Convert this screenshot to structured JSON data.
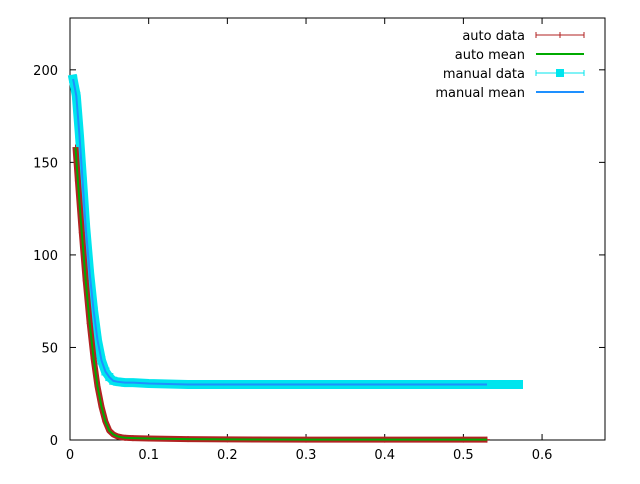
{
  "chart_data": {
    "type": "line",
    "title": "",
    "xlabel": "",
    "ylabel": "",
    "xlim": [
      0,
      0.68
    ],
    "ylim": [
      0,
      228
    ],
    "xticks": [
      0,
      0.1,
      0.2,
      0.3,
      0.4,
      0.5,
      0.6
    ],
    "xtick_labels": [
      "0",
      "0.1",
      "0.2",
      "0.3",
      "0.4",
      "0.5",
      "0.6"
    ],
    "yticks": [
      0,
      50,
      100,
      150,
      200
    ],
    "ytick_labels": [
      "0",
      "50",
      "100",
      "150",
      "200"
    ],
    "legend_position": "top-right",
    "grid": false,
    "series": [
      {
        "name": "auto data",
        "style": "errorbars",
        "color": "#b22222",
        "x": [
          0.007,
          0.01,
          0.015,
          0.02,
          0.025,
          0.03,
          0.035,
          0.04,
          0.045,
          0.05,
          0.055,
          0.06,
          0.065,
          0.07,
          0.08,
          0.1,
          0.15,
          0.2,
          0.3,
          0.4,
          0.5,
          0.53
        ],
        "y": [
          158,
          140,
          112,
          86,
          63,
          44,
          29,
          18,
          10,
          5,
          3,
          2,
          1.5,
          1.2,
          1.0,
          0.8,
          0.5,
          0.3,
          0.2,
          0.2,
          0.2,
          0.2
        ]
      },
      {
        "name": "auto mean",
        "style": "line",
        "color": "#00aa00",
        "x": [
          0.007,
          0.01,
          0.015,
          0.02,
          0.025,
          0.03,
          0.035,
          0.04,
          0.045,
          0.05,
          0.055,
          0.06,
          0.065,
          0.07,
          0.08,
          0.1,
          0.15,
          0.2,
          0.3,
          0.4,
          0.5,
          0.53
        ],
        "y": [
          158,
          140,
          112,
          86,
          63,
          44,
          29,
          18,
          10,
          5,
          3,
          2,
          1.5,
          1.2,
          1.0,
          0.8,
          0.5,
          0.3,
          0.2,
          0.2,
          0.2,
          0.2
        ]
      },
      {
        "name": "manual data",
        "style": "errorbars+points",
        "color": "#00e5ee",
        "x": [
          0.004,
          0.008,
          0.012,
          0.016,
          0.02,
          0.025,
          0.03,
          0.035,
          0.04,
          0.045,
          0.05,
          0.055,
          0.06,
          0.07,
          0.08,
          0.1,
          0.15,
          0.2,
          0.3,
          0.4,
          0.5,
          0.57
        ],
        "y": [
          195,
          186,
          165,
          140,
          115,
          90,
          70,
          54,
          43,
          37,
          34,
          32,
          31.5,
          31,
          31,
          30.5,
          30,
          30,
          30,
          30,
          30,
          30
        ]
      },
      {
        "name": "manual mean",
        "style": "line",
        "color": "#1e90ff",
        "x": [
          0.004,
          0.008,
          0.012,
          0.016,
          0.02,
          0.025,
          0.03,
          0.035,
          0.04,
          0.045,
          0.05,
          0.055,
          0.06,
          0.07,
          0.08,
          0.1,
          0.15,
          0.2,
          0.3,
          0.4,
          0.5,
          0.53
        ],
        "y": [
          195,
          186,
          165,
          140,
          115,
          90,
          70,
          54,
          43,
          37,
          34,
          32,
          31.5,
          31,
          31,
          30.5,
          30,
          30,
          30,
          30,
          30,
          30
        ]
      }
    ]
  }
}
